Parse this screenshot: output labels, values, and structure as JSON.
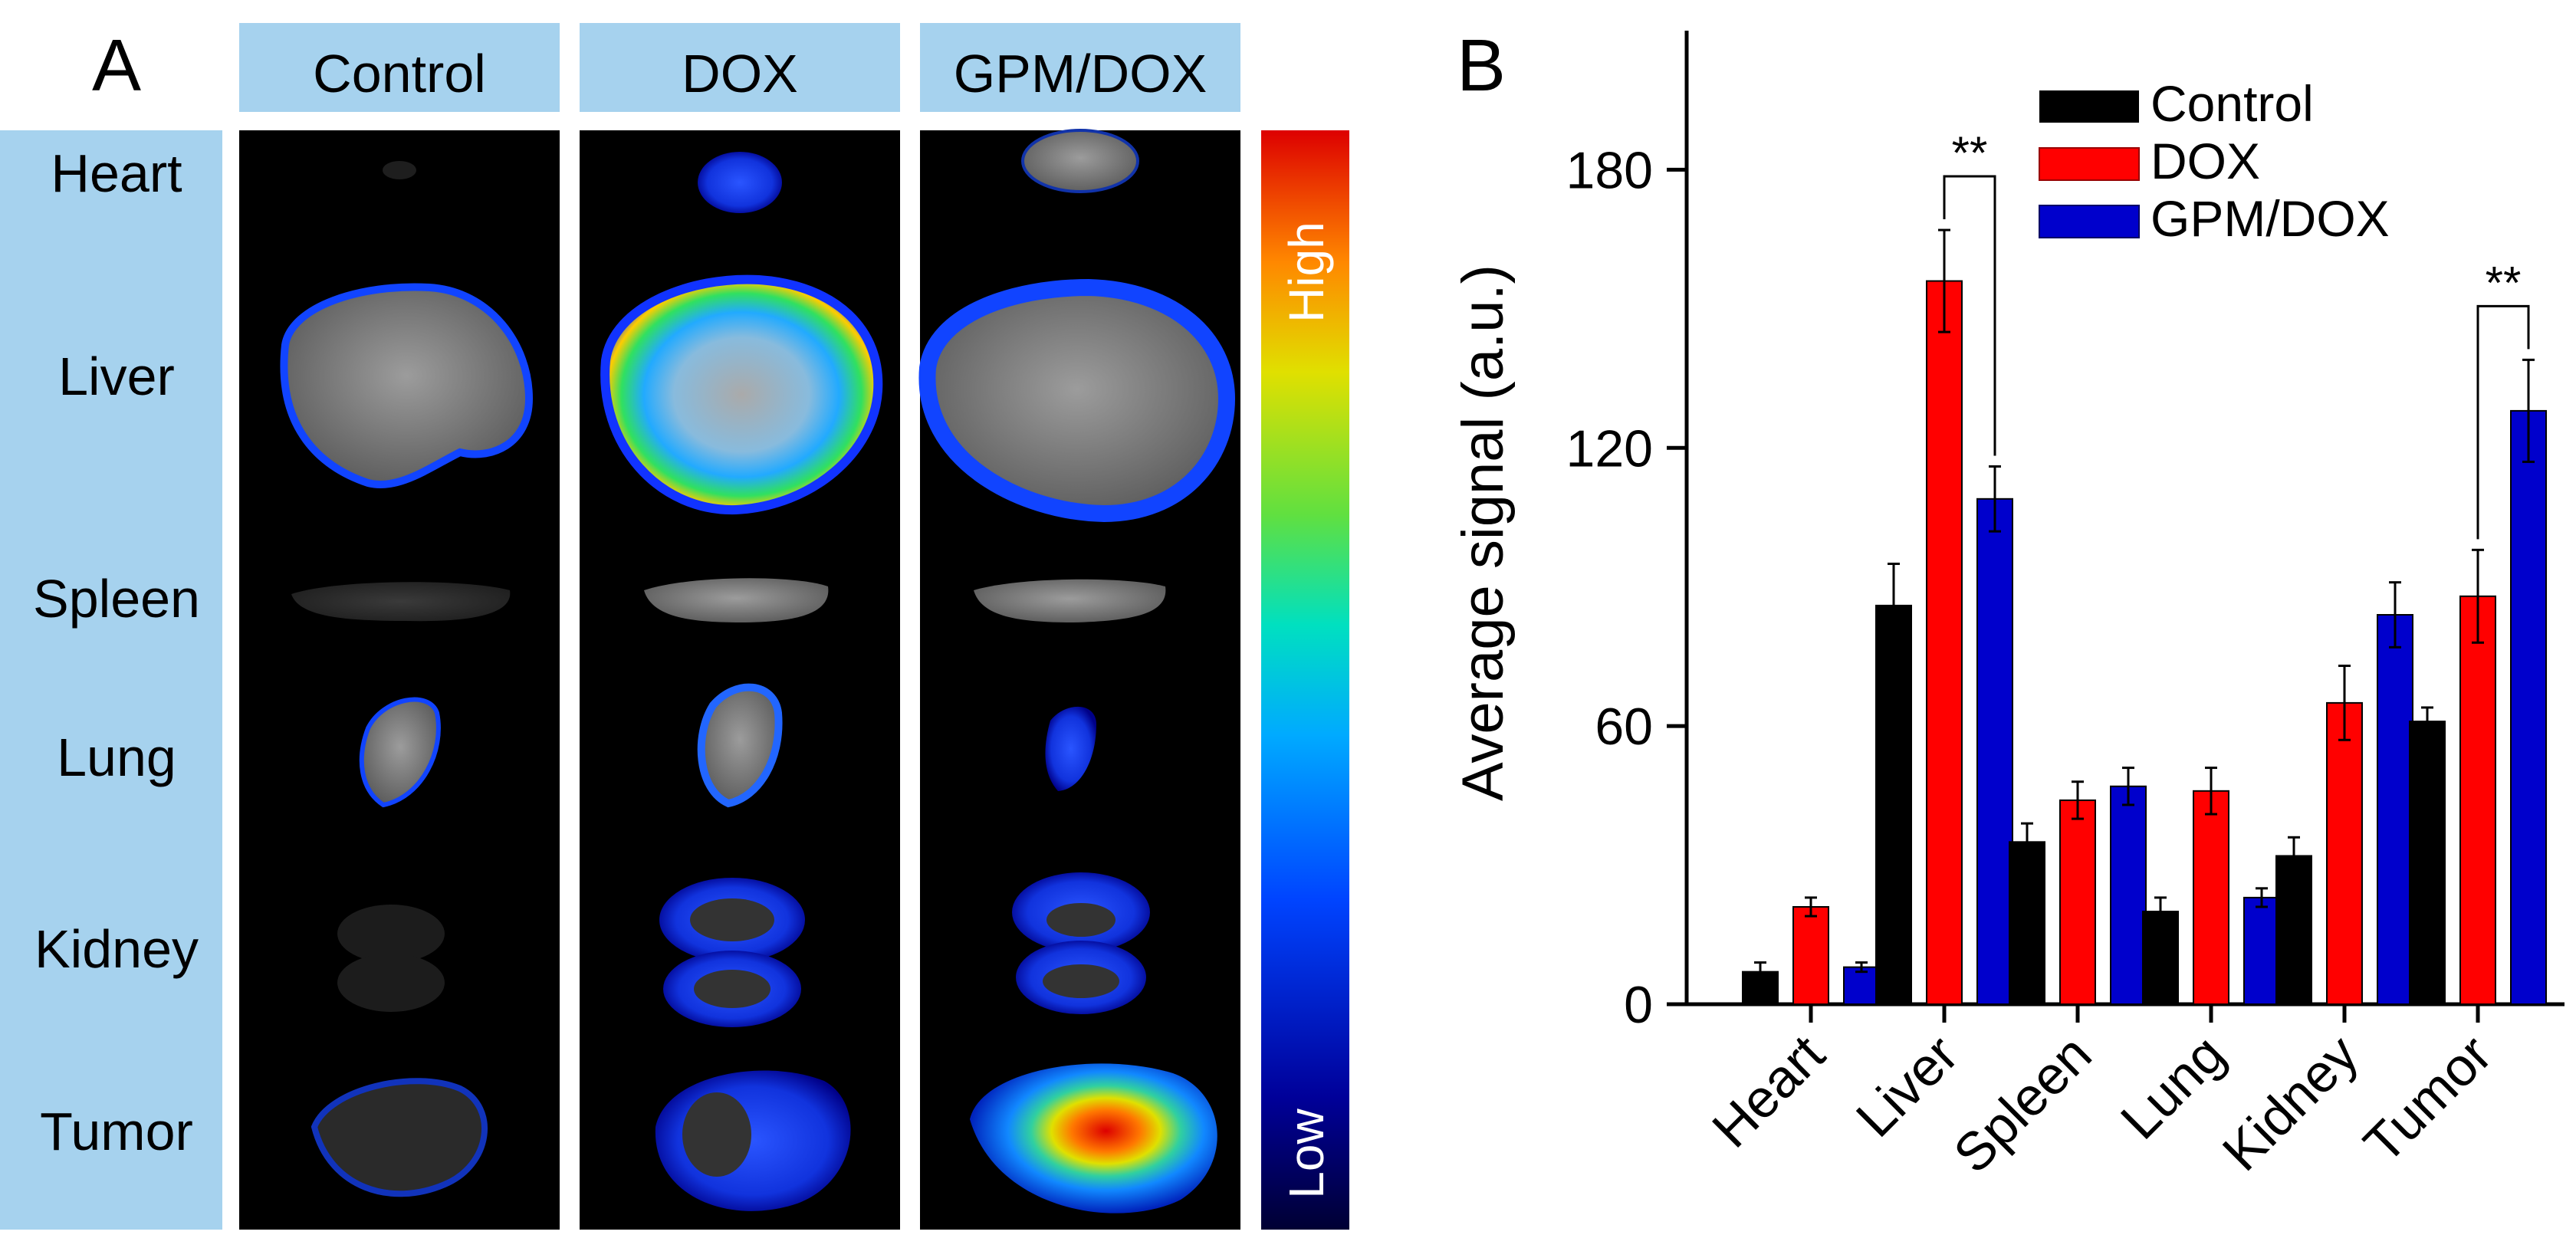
{
  "panel_a": {
    "letter": "A",
    "columns": [
      "Control",
      "DOX",
      "GPM/DOX"
    ],
    "rows": [
      "Heart",
      "Liver",
      "Spleen",
      "Lung",
      "Kidney",
      "Tumor"
    ],
    "colorbar": {
      "high": "High",
      "low": "Low"
    }
  },
  "panel_b": {
    "letter": "B"
  },
  "chart_data": {
    "type": "bar",
    "title": "",
    "xlabel": "",
    "ylabel": "Average signal (a.u.)",
    "ylim": [
      0,
      210
    ],
    "yticks": [
      0,
      60,
      120,
      180
    ],
    "categories": [
      "Heart",
      "Liver",
      "Spleen",
      "Lung",
      "Kidney",
      "Tumor"
    ],
    "series": [
      {
        "name": "Control",
        "color": "#000000",
        "values": [
          7,
          86,
          35,
          20,
          32,
          61
        ],
        "errors": [
          2,
          9,
          4,
          3,
          4,
          3
        ]
      },
      {
        "name": "DOX",
        "color": "#ff0000",
        "values": [
          21,
          156,
          44,
          46,
          65,
          88
        ],
        "errors": [
          2,
          11,
          4,
          5,
          8,
          10
        ]
      },
      {
        "name": "GPM/DOX",
        "color": "#0000cc",
        "values": [
          8,
          109,
          47,
          23,
          84,
          128
        ],
        "errors": [
          1,
          7,
          4,
          2,
          7,
          11
        ]
      }
    ],
    "legend_position": "top-right",
    "annotations": [
      {
        "category": "Liver",
        "between": [
          "DOX",
          "GPM/DOX"
        ],
        "text": "**"
      },
      {
        "category": "Tumor",
        "between": [
          "DOX",
          "GPM/DOX"
        ],
        "text": "**"
      }
    ],
    "grid": false
  }
}
